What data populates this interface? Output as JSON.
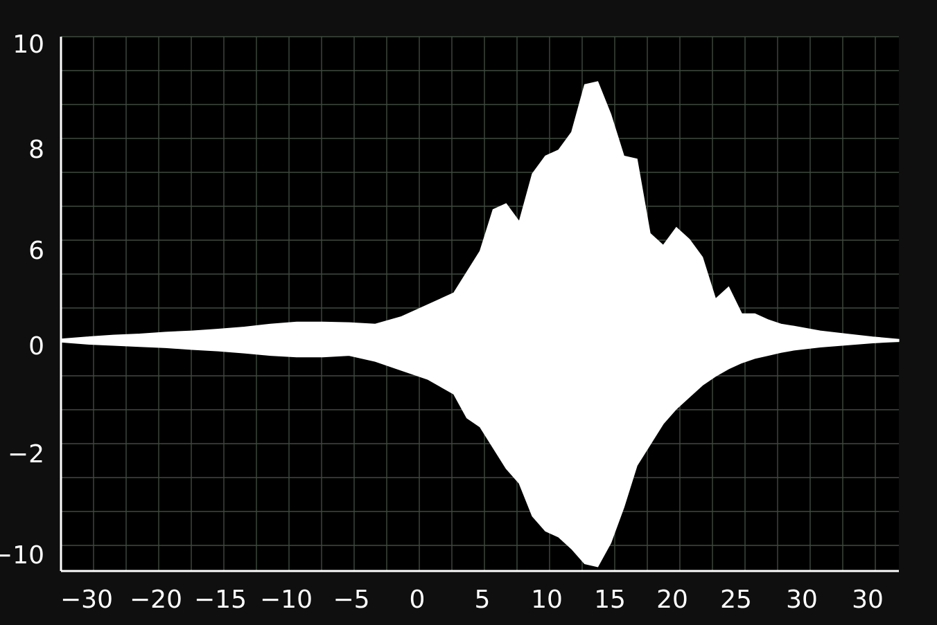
{
  "chart_data": {
    "type": "area",
    "title": "",
    "xlabel": "",
    "ylabel": "",
    "x_tick_labels": [
      "−30",
      "−20",
      "−15",
      "−10",
      "−5",
      "0",
      "5",
      "10",
      "15",
      "20",
      "25",
      "30",
      "30"
    ],
    "y_tick_labels": [
      "10",
      "8",
      "6",
      "0",
      "−2",
      "−10"
    ],
    "grid": true,
    "colors": {
      "background": "#0f0f0f",
      "plot_background": "#000000",
      "grid": "#3f4a3f",
      "axis": "#ffffff",
      "signal": "#ffffff"
    },
    "series": [
      {
        "x": [
          -31,
          -29,
          -27,
          -25,
          -23,
          -21,
          -19,
          -17,
          -15,
          -13,
          -11,
          -9,
          -7,
          -5,
          -3,
          -1,
          0,
          1,
          2,
          3,
          4,
          5,
          6,
          7,
          8,
          9,
          10,
          11,
          12,
          13,
          14,
          15,
          16,
          17,
          18,
          19,
          20,
          21,
          22,
          23,
          24,
          25,
          27,
          29,
          31,
          33
        ],
        "upper": [
          0.05,
          0.12,
          0.18,
          0.22,
          0.28,
          0.32,
          0.38,
          0.45,
          0.55,
          0.62,
          0.62,
          0.6,
          0.55,
          0.8,
          1.2,
          1.6,
          2.3,
          3.0,
          4.4,
          4.6,
          4.0,
          5.6,
          6.2,
          6.4,
          7.0,
          8.6,
          8.7,
          7.6,
          6.2,
          6.1,
          3.6,
          3.2,
          3.8,
          3.4,
          2.8,
          1.4,
          1.8,
          0.9,
          0.9,
          0.7,
          0.55,
          0.48,
          0.32,
          0.22,
          0.12,
          0.04
        ],
        "lower": [
          -0.05,
          -0.12,
          -0.16,
          -0.2,
          -0.24,
          -0.3,
          -0.35,
          -0.42,
          -0.5,
          -0.55,
          -0.55,
          -0.5,
          -0.7,
          -1.0,
          -1.3,
          -1.8,
          -2.6,
          -2.9,
          -3.6,
          -4.3,
          -4.8,
          -5.9,
          -6.4,
          -6.6,
          -7.0,
          -7.5,
          -7.6,
          -6.8,
          -5.6,
          -4.2,
          -3.5,
          -2.8,
          -2.3,
          -1.9,
          -1.5,
          -1.2,
          -0.95,
          -0.75,
          -0.6,
          -0.5,
          -0.4,
          -0.32,
          -0.22,
          -0.15,
          -0.08,
          -0.03
        ]
      }
    ]
  }
}
